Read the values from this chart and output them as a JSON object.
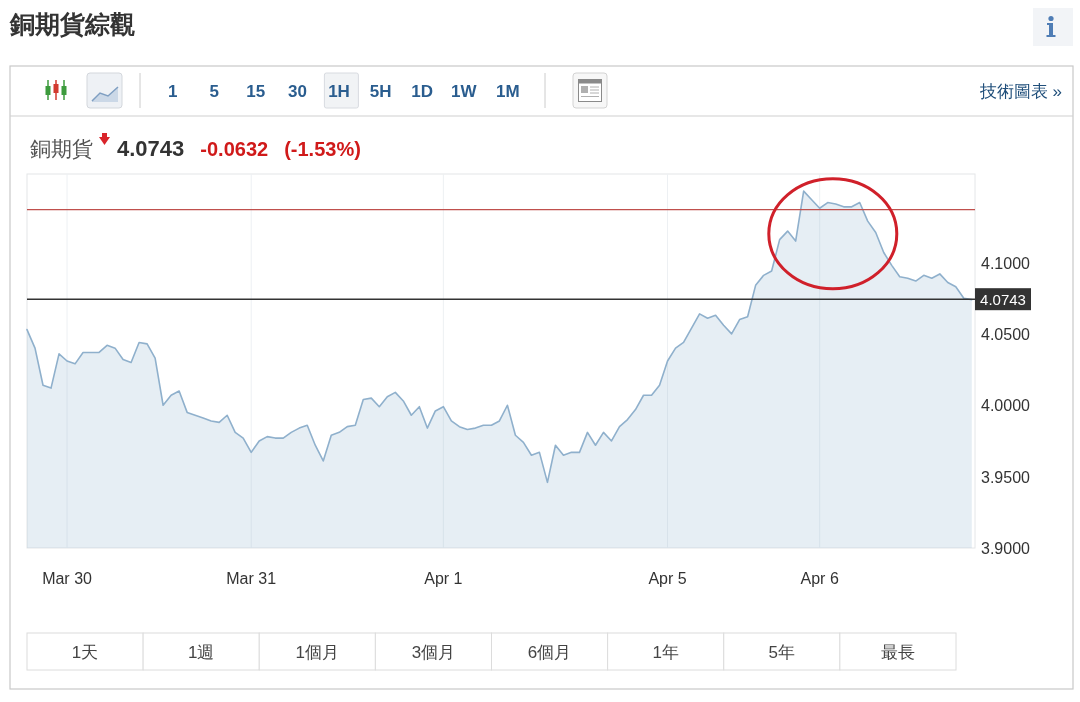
{
  "chart_data": {
    "type": "area",
    "title": "銅期貨綜觀",
    "subtitle": "銅期貨",
    "categories": [
      null,
      null,
      null,
      null,
      null,
      "Mar 30",
      null,
      null,
      null,
      null,
      null,
      null,
      null,
      null,
      null,
      null,
      null,
      null,
      null,
      null,
      null,
      null,
      null,
      null,
      null,
      null,
      null,
      null,
      "Mar 31",
      null,
      null,
      null,
      null,
      null,
      null,
      null,
      null,
      null,
      null,
      null,
      null,
      null,
      null,
      null,
      null,
      null,
      null,
      null,
      null,
      null,
      null,
      null,
      "Apr 1",
      null,
      null,
      null,
      null,
      null,
      null,
      null,
      null,
      null,
      null,
      null,
      null,
      null,
      null,
      null,
      null,
      null,
      null,
      null,
      null,
      null,
      null,
      null,
      null,
      null,
      null,
      null,
      "Apr 5",
      null,
      null,
      null,
      null,
      null,
      null,
      null,
      null,
      null,
      null,
      null,
      null,
      null,
      null,
      null,
      null,
      null,
      null,
      "Apr 6",
      null,
      null,
      null,
      null,
      null,
      null,
      null,
      null,
      null,
      null,
      null,
      null,
      null,
      null,
      null,
      null,
      null,
      null,
      null
    ],
    "series": [
      {
        "color": "#8fb0cc",
        "values": [
          4.053,
          4.04,
          4.014,
          4.012,
          4.036,
          4.031,
          4.029,
          4.037,
          4.037,
          4.037,
          4.042,
          4.04,
          4.032,
          4.03,
          4.044,
          4.043,
          4.033,
          4.0,
          4.007,
          4.01,
          3.995,
          3.993,
          3.991,
          3.989,
          3.988,
          3.993,
          3.981,
          3.977,
          3.967,
          3.975,
          3.978,
          3.977,
          3.977,
          3.981,
          3.984,
          3.986,
          3.972,
          3.961,
          3.979,
          3.981,
          3.985,
          3.986,
          4.004,
          4.005,
          3.999,
          4.006,
          4.009,
          4.003,
          3.993,
          3.999,
          3.984,
          3.996,
          3.999,
          3.989,
          3.985,
          3.983,
          3.984,
          3.986,
          3.986,
          3.989,
          4.0,
          3.979,
          3.974,
          3.965,
          3.967,
          3.946,
          3.972,
          3.965,
          3.967,
          3.967,
          3.981,
          3.972,
          3.981,
          3.975,
          3.985,
          3.99,
          3.997,
          4.007,
          4.007,
          4.014,
          4.031,
          4.04,
          4.044,
          4.054,
          4.064,
          4.061,
          4.063,
          4.056,
          4.05,
          4.06,
          4.062,
          4.084,
          4.091,
          4.094,
          4.116,
          4.122,
          4.115,
          4.15,
          4.144,
          4.138,
          4.142,
          4.141,
          4.139,
          4.139,
          4.142,
          4.129,
          4.121,
          4.107,
          4.098,
          4.09,
          4.089,
          4.087,
          4.091,
          4.089,
          4.092,
          4.086,
          4.083,
          4.075,
          4.074
        ]
      }
    ],
    "ylim": [
      3.9,
      4.162
    ],
    "yticks": [
      {
        "value": 3.9,
        "label": "3.9000"
      },
      {
        "value": 3.95,
        "label": "3.9500"
      },
      {
        "value": 4.0,
        "label": "4.0000"
      },
      {
        "value": 4.05,
        "label": "4.0500"
      },
      {
        "value": 4.1,
        "label": "4.1000"
      }
    ],
    "grid": "x",
    "ref_lines": [
      {
        "axis": "y",
        "value": 4.137,
        "color": "#c0504d"
      },
      {
        "axis": "y",
        "value": 4.0743,
        "label": "4.0743",
        "color": "#333333"
      }
    ],
    "annotations": [
      "4.0743",
      "-0.0632",
      "(-1.53%)",
      "1 5 15 30 1H 5H 1D 1W 1M",
      "技術圖表 »",
      "1天",
      "1週",
      "1個月",
      "3個月",
      "6個月",
      "1年",
      "5年",
      "最長"
    ]
  }
}
